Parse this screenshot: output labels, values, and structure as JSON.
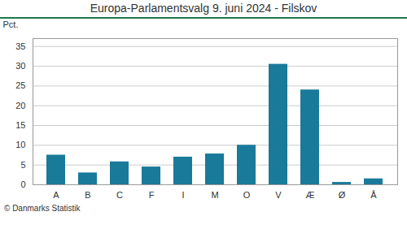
{
  "chart_data": {
    "type": "bar",
    "title": "Europa-Parlamentsvalg 9. juni 2024 - Filskov",
    "categories": [
      "A",
      "B",
      "C",
      "F",
      "I",
      "M",
      "O",
      "V",
      "Æ",
      "Ø",
      "Å"
    ],
    "values": [
      7.5,
      3.0,
      5.8,
      4.5,
      7.0,
      7.8,
      10.0,
      30.5,
      24.0,
      0.6,
      1.5
    ],
    "color": "#1a7a9a",
    "ylabel": "Pct.",
    "ylim": [
      0,
      37
    ],
    "yticks": [
      0,
      5,
      10,
      15,
      20,
      25,
      30,
      35
    ],
    "grid": true,
    "caption": "© Danmarks Statistik"
  }
}
